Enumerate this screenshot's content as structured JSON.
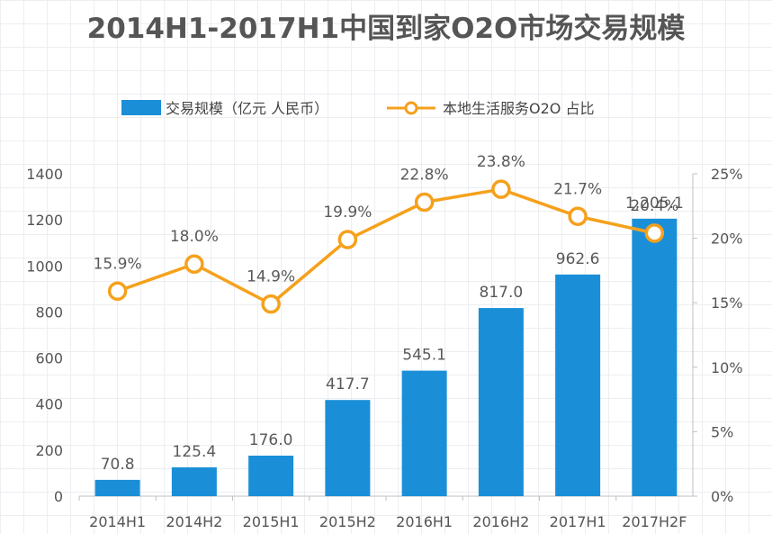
{
  "chart_data": {
    "type": "bar",
    "title": "2014H1-2017H1中国到家O2O市场交易规模",
    "categories": [
      "2014H1",
      "2014H2",
      "2015H1",
      "2015H2",
      "2016H1",
      "2016H2",
      "2017H1",
      "2017H2F"
    ],
    "series": [
      {
        "name": "交易规模（亿元 人民币）",
        "type": "bar",
        "axis": "left",
        "color": "#1a8fd8",
        "values": [
          70.8,
          125.4,
          176.0,
          417.7,
          545.1,
          817.0,
          962.6,
          1205.1
        ],
        "labels": [
          "70.8",
          "125.4",
          "176.0",
          "417.7",
          "545.1",
          "817.0",
          "962.6",
          "1,205.1"
        ]
      },
      {
        "name": "本地生活服务O2O 占比",
        "type": "line",
        "axis": "right",
        "color": "#f5a11c",
        "values": [
          15.9,
          18.0,
          14.9,
          19.9,
          22.8,
          23.8,
          21.7,
          20.4
        ],
        "labels": [
          "15.9%",
          "18.0%",
          "14.9%",
          "19.9%",
          "22.8%",
          "23.8%",
          "21.7%",
          "20.4%"
        ]
      }
    ],
    "y_left": {
      "ylim": [
        0,
        1400
      ],
      "ticks": [
        "0",
        "200",
        "400",
        "600",
        "800",
        "1000",
        "1200",
        "1400"
      ]
    },
    "y_right": {
      "ylim": [
        0,
        25
      ],
      "ticks": [
        "0%",
        "5%",
        "10%",
        "15%",
        "20%",
        "25%"
      ]
    },
    "legend_position": "top"
  }
}
